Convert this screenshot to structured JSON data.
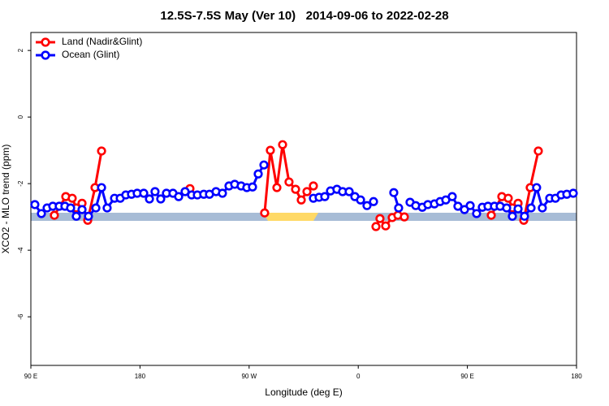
{
  "chart_data": {
    "type": "line",
    "title": "12.5S-7.5S May (Ver 10)   2014-09-06 to 2022-02-28",
    "x_label": "Longitude (deg E)",
    "y_label": "XCO2 - MLO trend (ppm)",
    "xlim": [
      90,
      540
    ],
    "xticks": [
      {
        "value": 90,
        "label": "90 E"
      },
      {
        "value": 180,
        "label": "180"
      },
      {
        "value": 270,
        "label": "90 W"
      },
      {
        "value": 360,
        "label": "0"
      },
      {
        "value": 450,
        "label": "90 E"
      },
      {
        "value": 540,
        "label": "180"
      }
    ],
    "ylim": [
      -7.46,
      2.54
    ],
    "yticks": [
      -6,
      -4,
      -2,
      0,
      2
    ],
    "legend": "topleft",
    "series": [
      {
        "name": "Land (Nadir&Glint)",
        "color": "#ff0000",
        "x": [
          109.4,
          118.8,
          124.1,
          127.5,
          132.2,
          136.9,
          142.9,
          148.3,
          null,
          221.2,
          null,
          282.8,
          287.5,
          292.9,
          297.6,
          302.9,
          308.3,
          313.0,
          317.7,
          323.0,
          null,
          374.6,
          377.9,
          382.6,
          388.0,
          392.7,
          398.0,
          null,
          469.7,
          478.4,
          483.7,
          487.1,
          491.8,
          496.5,
          501.8,
          508.5
        ],
        "values": [
          -2.95,
          -2.39,
          -2.44,
          -2.73,
          -2.59,
          -3.1,
          -2.12,
          -1.02,
          null,
          -2.15,
          null,
          -2.88,
          -1.0,
          -2.12,
          -0.83,
          -1.95,
          -2.17,
          -2.49,
          -2.24,
          -2.07,
          null,
          -3.29,
          -3.05,
          -3.27,
          -3.02,
          -2.95,
          -3.0,
          null,
          -2.95,
          -2.39,
          -2.44,
          -2.73,
          -2.59,
          -3.1,
          -2.12,
          -1.02
        ]
      },
      {
        "name": "Ocean (Glint)",
        "color": "#0000ff",
        "x": [
          93.3,
          98.7,
          103.4,
          108.1,
          113.4,
          118.1,
          122.8,
          127.5,
          132.2,
          137.5,
          143.6,
          148.3,
          152.9,
          159.0,
          163.7,
          168.3,
          173.0,
          177.7,
          183.1,
          187.8,
          192.4,
          197.1,
          201.8,
          207.2,
          211.9,
          217.2,
          222.6,
          227.3,
          232.6,
          237.3,
          242.7,
          248.0,
          253.4,
          258.1,
          263.4,
          268.1,
          272.8,
          277.5,
          282.2,
          null,
          323.0,
          327.7,
          332.4,
          337.1,
          342.4,
          347.1,
          352.5,
          357.2,
          361.9,
          367.2,
          372.6,
          null,
          389.3,
          393.3,
          null,
          402.7,
          407.4,
          412.8,
          417.4,
          422.8,
          427.5,
          432.2,
          437.5,
          442.2,
          447.6,
          452.3,
          457.6,
          462.3,
          467.0,
          472.3,
          477.0,
          482.4,
          487.1,
          491.8,
          497.1,
          502.5,
          507.1,
          511.8,
          517.9,
          522.6,
          527.3,
          532.0,
          537.3
        ],
        "values": [
          -2.63,
          -2.9,
          -2.73,
          -2.68,
          -2.68,
          -2.68,
          -2.73,
          -2.98,
          -2.78,
          -2.98,
          -2.73,
          -2.12,
          -2.73,
          -2.44,
          -2.44,
          -2.34,
          -2.32,
          -2.29,
          -2.29,
          -2.46,
          -2.24,
          -2.46,
          -2.29,
          -2.29,
          -2.39,
          -2.24,
          -2.34,
          -2.34,
          -2.32,
          -2.32,
          -2.24,
          -2.29,
          -2.07,
          -2.02,
          -2.07,
          -2.12,
          -2.1,
          -1.71,
          -1.44,
          null,
          -2.44,
          -2.41,
          -2.39,
          -2.22,
          -2.17,
          -2.24,
          -2.24,
          -2.39,
          -2.49,
          -2.66,
          -2.54,
          null,
          -2.27,
          -2.73,
          null,
          -2.56,
          -2.66,
          -2.71,
          -2.63,
          -2.61,
          -2.54,
          -2.49,
          -2.39,
          -2.68,
          -2.78,
          -2.66,
          -2.9,
          -2.71,
          -2.68,
          -2.68,
          -2.68,
          -2.73,
          -2.98,
          -2.76,
          -2.98,
          -2.73,
          -2.12,
          -2.73,
          -2.44,
          -2.44,
          -2.34,
          -2.32,
          -2.29
        ]
      }
    ]
  }
}
